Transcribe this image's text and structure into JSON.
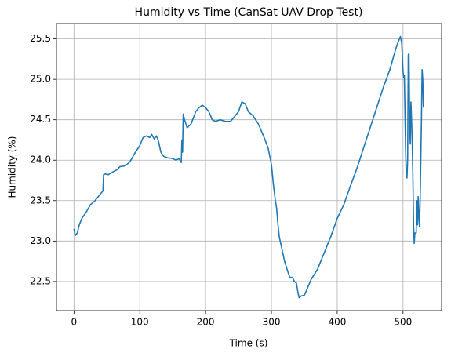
{
  "chart_data": {
    "type": "line",
    "title": "Humidity vs Time (CanSat UAV Drop Test)",
    "x_label": "Time (s)",
    "y_label": "Humidity (%)",
    "xlim": [
      -26.6,
      558.6
    ],
    "ylim": [
      22.14,
      25.69
    ],
    "xticks": [
      0,
      100,
      200,
      300,
      400,
      500
    ],
    "yticks": [
      22.5,
      {
        "value": 23.0,
        "label": "23.0"
      },
      23.5,
      {
        "value": 24.0,
        "label": "24.0"
      },
      24.5,
      {
        "value": 25.0,
        "label": "25.0"
      },
      25.5
    ],
    "grid": true,
    "series": [
      {
        "name": "Humidity",
        "color": "#1f77b4",
        "x": [
          0,
          2,
          5,
          8,
          12,
          18,
          25,
          32,
          38,
          42,
          44,
          45,
          48,
          52,
          58,
          65,
          70,
          78,
          85,
          92,
          100,
          105,
          110,
          115,
          118,
          122,
          125,
          128,
          132,
          136,
          142,
          150,
          155,
          160,
          163,
          164,
          165,
          166,
          168,
          172,
          178,
          185,
          190,
          195,
          200,
          205,
          210,
          215,
          222,
          230,
          238,
          245,
          250,
          255,
          260,
          265,
          272,
          280,
          288,
          295,
          300,
          303,
          306,
          308,
          310,
          312,
          316,
          320,
          325,
          328,
          332,
          335,
          338,
          340,
          342,
          345,
          350,
          355,
          360,
          370,
          380,
          390,
          400,
          410,
          420,
          430,
          440,
          450,
          460,
          470,
          480,
          488,
          492,
          496,
          498,
          500,
          501,
          502,
          504,
          505,
          506,
          507,
          508,
          509,
          510,
          511,
          512,
          513,
          514,
          515,
          516,
          517,
          518,
          520,
          521,
          522,
          523,
          524,
          525,
          526,
          528,
          529,
          530,
          531
        ],
        "values": [
          23.15,
          23.07,
          23.1,
          23.2,
          23.28,
          23.35,
          23.45,
          23.5,
          23.56,
          23.6,
          23.62,
          23.82,
          23.83,
          23.82,
          23.85,
          23.88,
          23.92,
          23.93,
          23.98,
          24.08,
          24.18,
          24.28,
          24.3,
          24.28,
          24.32,
          24.26,
          24.3,
          24.25,
          24.1,
          24.05,
          24.03,
          24.02,
          24.0,
          24.02,
          23.97,
          24.25,
          24.1,
          24.57,
          24.5,
          24.4,
          24.45,
          24.6,
          24.65,
          24.68,
          24.65,
          24.6,
          24.5,
          24.48,
          24.5,
          24.48,
          24.48,
          24.55,
          24.6,
          24.72,
          24.7,
          24.6,
          24.55,
          24.45,
          24.3,
          24.15,
          23.95,
          23.7,
          23.5,
          23.4,
          23.2,
          23.05,
          22.9,
          22.75,
          22.62,
          22.55,
          22.55,
          22.5,
          22.48,
          22.38,
          22.3,
          22.32,
          22.33,
          22.42,
          22.52,
          22.65,
          22.85,
          23.05,
          23.28,
          23.45,
          23.68,
          23.9,
          24.15,
          24.4,
          24.65,
          24.9,
          25.12,
          25.35,
          25.45,
          25.53,
          25.45,
          25.1,
          25.02,
          25.05,
          24.1,
          23.8,
          23.78,
          24.0,
          25.3,
          25.32,
          24.5,
          24.2,
          24.72,
          24.5,
          24.2,
          23.8,
          23.2,
          22.97,
          23.1,
          23.1,
          23.5,
          23.2,
          23.55,
          23.3,
          23.18,
          23.5,
          24.5,
          25.12,
          25.0,
          24.65
        ]
      }
    ]
  }
}
